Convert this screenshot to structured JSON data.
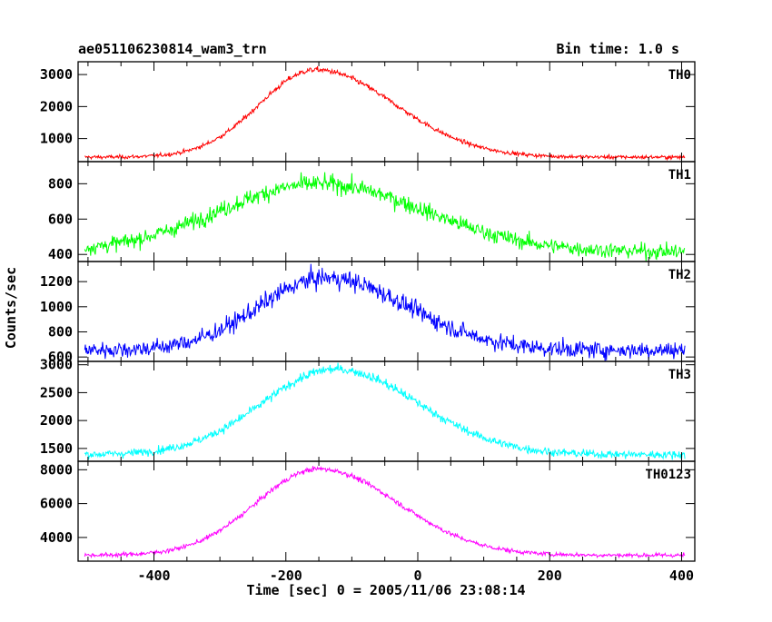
{
  "header": {
    "title": "ae051106230814_wam3_trn",
    "bin_time": "Bin time: 1.0 s"
  },
  "axes": {
    "xlabel": "Time [sec] 0 = 2005/11/06 23:08:14",
    "ylabel": "Counts/sec"
  },
  "chart_data": {
    "type": "line",
    "title": "ae051106230814_wam3_trn",
    "xlabel": "Time [sec] 0 = 2005/11/06 23:08:14",
    "ylabel": "Counts/sec",
    "xlim": [
      -515,
      420
    ],
    "x_ticks": [
      -400,
      -200,
      0,
      200,
      400
    ],
    "x_step": 1.0,
    "grid": false,
    "layout": "stacked panels sharing x axis",
    "series": [
      {
        "name": "TH0",
        "color": "#ff0000",
        "ylim": [
          280,
          3400
        ],
        "y_ticks": [
          1000,
          2000,
          3000
        ],
        "baseline": 420,
        "peak": 3150,
        "center": -155,
        "sigma_left": 85,
        "sigma_right": 120,
        "noise": 60
      },
      {
        "name": "TH1",
        "color": "#00ff00",
        "ylim": [
          360,
          925
        ],
        "y_ticks": [
          400,
          600,
          800
        ],
        "baseline": 415,
        "peak": 800,
        "center": -150,
        "sigma_left": 150,
        "sigma_right": 160,
        "noise": 35
      },
      {
        "name": "TH2",
        "color": "#0000ff",
        "ylim": [
          565,
          1360
        ],
        "y_ticks": [
          600,
          800,
          1000,
          1200
        ],
        "baseline": 655,
        "peak": 1230,
        "center": -140,
        "sigma_left": 100,
        "sigma_right": 125,
        "noise": 55
      },
      {
        "name": "TH3",
        "color": "#00ffff",
        "ylim": [
          1270,
          3060
        ],
        "y_ticks": [
          1500,
          2000,
          2500,
          3000
        ],
        "baseline": 1390,
        "peak": 2920,
        "center": -125,
        "sigma_left": 110,
        "sigma_right": 125,
        "noise": 60
      },
      {
        "name": "TH0123",
        "color": "#ff00ff",
        "ylim": [
          2600,
          8500
        ],
        "y_ticks": [
          4000,
          6000,
          8000
        ],
        "baseline": 2950,
        "peak": 8050,
        "center": -150,
        "sigma_left": 95,
        "sigma_right": 120,
        "noise": 110
      }
    ]
  }
}
